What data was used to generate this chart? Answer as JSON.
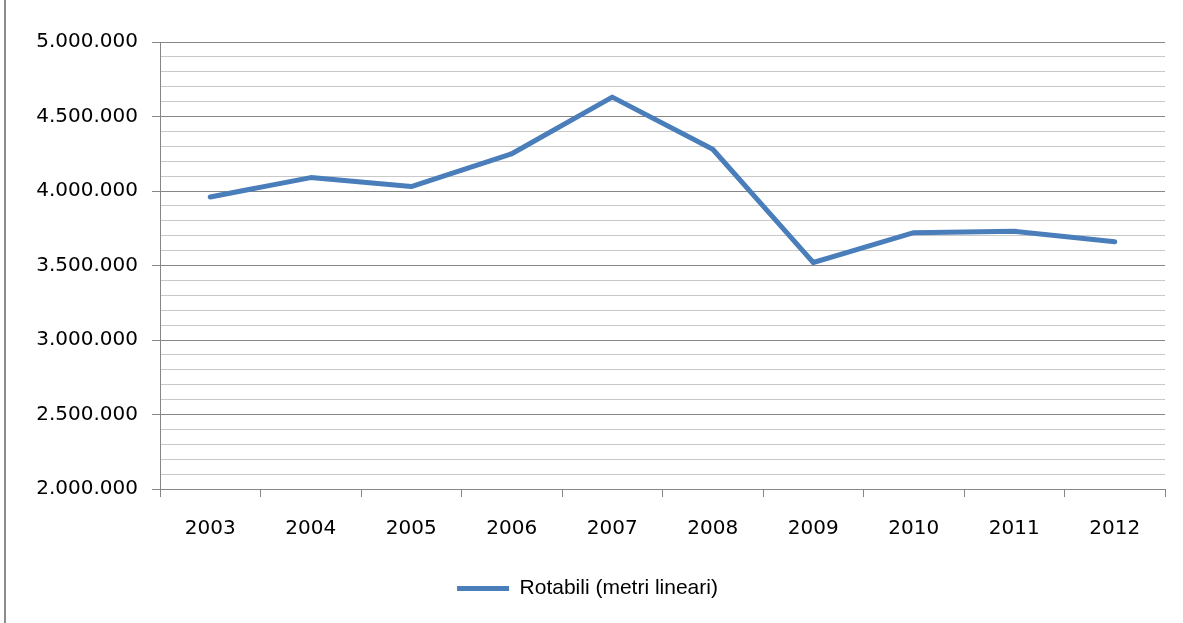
{
  "chart_data": {
    "type": "line",
    "categories": [
      "2003",
      "2004",
      "2005",
      "2006",
      "2007",
      "2008",
      "2009",
      "2010",
      "2011",
      "2012"
    ],
    "series": [
      {
        "name": "Rotabili (metri lineari)",
        "color": "#4a7ebb",
        "values": [
          3960000,
          4090000,
          4030000,
          4250000,
          4630000,
          4280000,
          3520000,
          3720000,
          3730000,
          3660000
        ]
      }
    ],
    "ylim": [
      2000000,
      5000000
    ],
    "yticks": [
      {
        "value": 2000000,
        "label": "2.000.000"
      },
      {
        "value": 2100000,
        "label": null
      },
      {
        "value": 2200000,
        "label": null
      },
      {
        "value": 2300000,
        "label": null
      },
      {
        "value": 2400000,
        "label": null
      },
      {
        "value": 2500000,
        "label": "2.500.000"
      },
      {
        "value": 2600000,
        "label": null
      },
      {
        "value": 2700000,
        "label": null
      },
      {
        "value": 2800000,
        "label": null
      },
      {
        "value": 2900000,
        "label": null
      },
      {
        "value": 3000000,
        "label": "3.000.000"
      },
      {
        "value": 3100000,
        "label": null
      },
      {
        "value": 3200000,
        "label": null
      },
      {
        "value": 3300000,
        "label": null
      },
      {
        "value": 3400000,
        "label": null
      },
      {
        "value": 3500000,
        "label": "3.500.000"
      },
      {
        "value": 3600000,
        "label": null
      },
      {
        "value": 3700000,
        "label": null
      },
      {
        "value": 3800000,
        "label": null
      },
      {
        "value": 3900000,
        "label": null
      },
      {
        "value": 4000000,
        "label": "4.000.000"
      },
      {
        "value": 4100000,
        "label": null
      },
      {
        "value": 4200000,
        "label": null
      },
      {
        "value": 4300000,
        "label": null
      },
      {
        "value": 4400000,
        "label": null
      },
      {
        "value": 4500000,
        "label": "4.500.000"
      },
      {
        "value": 4600000,
        "label": null
      },
      {
        "value": 4700000,
        "label": null
      },
      {
        "value": 4800000,
        "label": null
      },
      {
        "value": 4900000,
        "label": null
      },
      {
        "value": 5000000,
        "label": "5.000.000"
      }
    ],
    "grid": "y",
    "legend": "bottom",
    "marker": "none",
    "line_style": "solid"
  }
}
